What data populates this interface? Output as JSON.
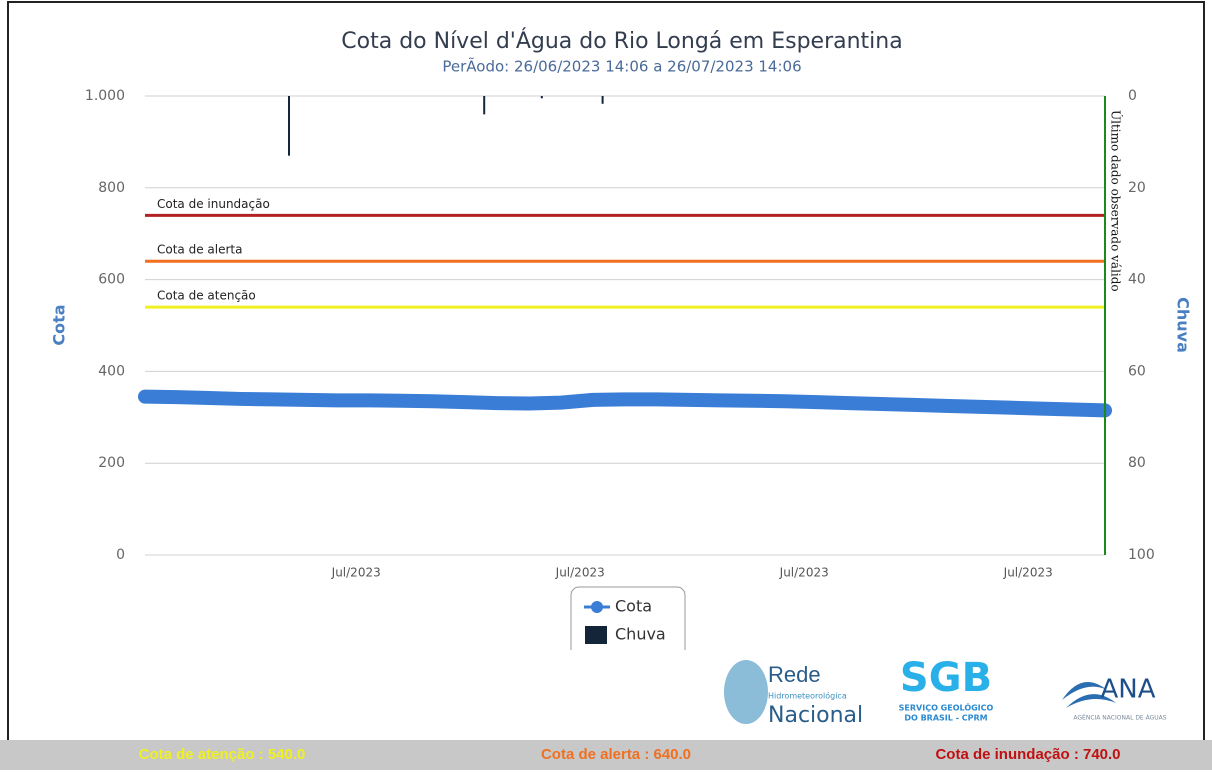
{
  "chart_data": {
    "type": "line",
    "title": "Cota do Nível d'Água do Rio Longá em Esperantina",
    "subtitle": "PerÃodo: 26/06/2023 14:06 a 26/07/2023 14:06",
    "ylabel": "Cota",
    "y2label": "Chuva",
    "xlim": [
      0,
      30
    ],
    "xticks": [
      {
        "value": 6.6,
        "label": "Jul/2023"
      },
      {
        "value": 13.6,
        "label": "Jul/2023"
      },
      {
        "value": 20.6,
        "label": "Jul/2023"
      },
      {
        "value": 27.6,
        "label": "Jul/2023"
      }
    ],
    "ylim": [
      0,
      1000
    ],
    "yticks": [
      0,
      200,
      400,
      600,
      800,
      {
        "value": 1000,
        "label": "1.000"
      }
    ],
    "y2lim": [
      100,
      0
    ],
    "y2ticks": [
      0,
      20,
      40,
      60,
      80,
      100
    ],
    "grid": true,
    "legend": "bottom",
    "series": [
      {
        "name": "Cota",
        "color": "#3a7dd6",
        "x": [
          0,
          1,
          2,
          3,
          4,
          5,
          6,
          7,
          8,
          9,
          10,
          11,
          12,
          13,
          14,
          15,
          16,
          17,
          18,
          19,
          20,
          21,
          22,
          23,
          24,
          25,
          26,
          27,
          28,
          29,
          30
        ],
        "values": [
          345,
          344,
          342,
          340,
          339,
          338,
          337,
          337,
          336,
          335,
          333,
          331,
          330,
          332,
          338,
          339,
          339,
          338,
          337,
          336,
          335,
          333,
          331,
          329,
          327,
          325,
          323,
          321,
          319,
          317,
          315
        ]
      },
      {
        "name": "Chuva",
        "type": "bar",
        "axis": "y2",
        "color": "#14253a",
        "x": [
          4.5,
          10.6,
          12.4,
          14.3
        ],
        "values": [
          13,
          4,
          0.5,
          1.7
        ]
      }
    ],
    "thresholds": [
      {
        "label": "Cota de inundação",
        "value": 740,
        "color": "#b22222"
      },
      {
        "label": "Cota de alerta",
        "value": 640,
        "color": "#f07020"
      },
      {
        "label": "Cota de atenção",
        "value": 540,
        "color": "#f0f020"
      }
    ],
    "vline": {
      "label": "Último dado observado válido",
      "x": 30,
      "color": "#1a8a1a"
    }
  },
  "logos": {
    "rede": [
      "Rede",
      "Hidrometeorológica",
      "Nacional"
    ],
    "sgb": [
      "SGB",
      "SERVIÇO GEOLÓGICO",
      "DO BRASIL - CPRM"
    ],
    "ana": [
      "ANA",
      "AGÊNCIA NACIONAL DE ÁGUAS"
    ]
  },
  "footer": [
    {
      "text": "Cota de atenção : 540.0",
      "color": "#f0f020"
    },
    {
      "text": "Cota de alerta : 640.0",
      "color": "#f07020"
    },
    {
      "text": "Cota de inundação : 740.0",
      "color": "#c01010"
    }
  ]
}
